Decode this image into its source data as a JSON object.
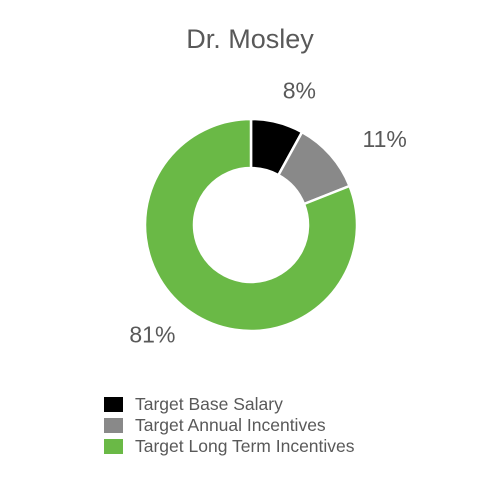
{
  "chart_data": {
    "type": "pie",
    "style": "donut",
    "title": "Dr. Mosley",
    "legend_position": "bottom",
    "slices": [
      {
        "label": "Target Base Salary",
        "value": 8,
        "display": "8%",
        "color": "#000000"
      },
      {
        "label": "Target Annual Incentives",
        "value": 11,
        "display": "11%",
        "color": "#898989"
      },
      {
        "label": "Target Long Term Incentives",
        "value": 81,
        "display": "81%",
        "color": "#6ab946"
      }
    ]
  }
}
